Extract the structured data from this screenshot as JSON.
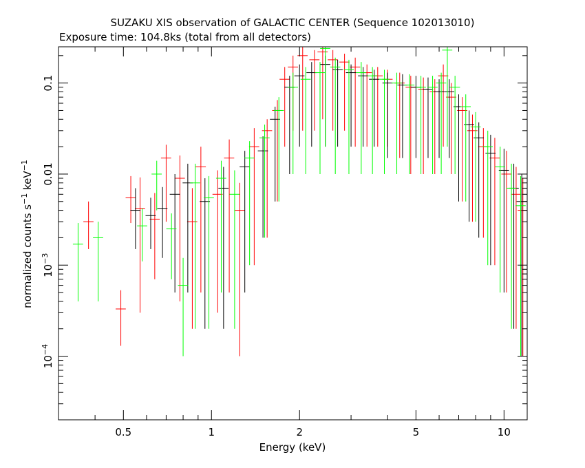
{
  "chart_data": {
    "type": "scatter",
    "title": "SUZAKU XIS observation of GALACTIC CENTER (Sequence 102013010)",
    "subtitle": "Exposure time: 104.8ks (total from all detectors)",
    "xlabel": "Energy (keV)",
    "ylabel_main": "normalized counts s",
    "ylabel_exp1": "−1",
    "ylabel_mid": " keV",
    "ylabel_exp2": "−1",
    "x_scale": "log",
    "y_scale": "log",
    "xlim": [
      0.3,
      12
    ],
    "ylim": [
      2e-05,
      0.25
    ],
    "x_ticks": [
      {
        "value": 0.5,
        "label": "0.5"
      },
      {
        "value": 1,
        "label": "1"
      },
      {
        "value": 2,
        "label": "2"
      },
      {
        "value": 5,
        "label": "5"
      },
      {
        "value": 10,
        "label": "10"
      }
    ],
    "y_ticks": [
      {
        "value": 0.1,
        "base": "0.1",
        "exp": ""
      },
      {
        "value": 0.01,
        "base": "0.01",
        "exp": ""
      },
      {
        "value": 0.001,
        "base": "10",
        "exp": "−3"
      },
      {
        "value": 0.0001,
        "base": "10",
        "exp": "−4"
      }
    ],
    "series": [
      {
        "color": "#ff0000",
        "points": [
          [
            0.38,
            0.003,
            0.002,
            0.0015
          ],
          [
            0.49,
            0.00033,
            0.0002,
            0.0002
          ],
          [
            0.53,
            0.0055,
            0.004,
            0.0026
          ],
          [
            0.57,
            0.0042,
            0.005,
            0.0039
          ],
          [
            0.64,
            0.0032,
            0.003,
            0.0025
          ],
          [
            0.7,
            0.015,
            0.006,
            0.012
          ],
          [
            0.78,
            0.009,
            0.007,
            0.0086
          ],
          [
            0.86,
            0.003,
            0.004,
            0.0028
          ],
          [
            0.92,
            0.012,
            0.008,
            0.0115
          ],
          [
            1.05,
            0.006,
            0.005,
            0.0057
          ],
          [
            1.15,
            0.015,
            0.009,
            0.0145
          ],
          [
            1.25,
            0.004,
            0.004,
            0.0039
          ],
          [
            1.4,
            0.02,
            0.012,
            0.019
          ],
          [
            1.55,
            0.03,
            0.01,
            0.028
          ],
          [
            1.68,
            0.05,
            0.015,
            0.045
          ],
          [
            1.78,
            0.11,
            0.04,
            0.09
          ],
          [
            1.9,
            0.15,
            0.05,
            0.12
          ],
          [
            2.05,
            0.2,
            0.05,
            0.17
          ],
          [
            2.25,
            0.18,
            0.05,
            0.15
          ],
          [
            2.4,
            0.22,
            0.03,
            0.18
          ],
          [
            2.6,
            0.18,
            0.05,
            0.15
          ],
          [
            2.85,
            0.17,
            0.04,
            0.14
          ],
          [
            3.1,
            0.15,
            0.04,
            0.13
          ],
          [
            3.4,
            0.13,
            0.03,
            0.11
          ],
          [
            3.7,
            0.12,
            0.03,
            0.1
          ],
          [
            4.0,
            0.11,
            0.03,
            0.09
          ],
          [
            4.4,
            0.1,
            0.03,
            0.085
          ],
          [
            4.8,
            0.09,
            0.03,
            0.08
          ],
          [
            5.3,
            0.085,
            0.03,
            0.075
          ],
          [
            5.8,
            0.08,
            0.03,
            0.07
          ],
          [
            6.2,
            0.12,
            0.04,
            0.1
          ],
          [
            6.6,
            0.07,
            0.03,
            0.06
          ],
          [
            7.2,
            0.05,
            0.02,
            0.045
          ],
          [
            7.8,
            0.03,
            0.015,
            0.027
          ],
          [
            8.5,
            0.02,
            0.012,
            0.018
          ],
          [
            9.3,
            0.015,
            0.01,
            0.014
          ],
          [
            10.2,
            0.01,
            0.008,
            0.0095
          ],
          [
            11.0,
            0.006,
            0.006,
            0.0058
          ],
          [
            11.6,
            0.004,
            0.005,
            0.0039
          ]
        ]
      },
      {
        "color": "#000000",
        "points": [
          [
            0.55,
            0.004,
            0.003,
            0.0025
          ],
          [
            0.62,
            0.0035,
            0.002,
            0.002
          ],
          [
            0.68,
            0.0042,
            0.003,
            0.003
          ],
          [
            0.75,
            0.006,
            0.004,
            0.0055
          ],
          [
            0.83,
            0.008,
            0.005,
            0.0075
          ],
          [
            0.95,
            0.005,
            0.004,
            0.0048
          ],
          [
            1.1,
            0.007,
            0.005,
            0.0068
          ],
          [
            1.3,
            0.012,
            0.006,
            0.0115
          ],
          [
            1.5,
            0.018,
            0.008,
            0.016
          ],
          [
            1.65,
            0.04,
            0.015,
            0.035
          ],
          [
            1.85,
            0.09,
            0.03,
            0.08
          ],
          [
            2.0,
            0.12,
            0.04,
            0.1
          ],
          [
            2.2,
            0.13,
            0.04,
            0.11
          ],
          [
            2.45,
            0.16,
            0.04,
            0.14
          ],
          [
            2.7,
            0.14,
            0.04,
            0.12
          ],
          [
            3.0,
            0.13,
            0.03,
            0.11
          ],
          [
            3.3,
            0.12,
            0.03,
            0.1
          ],
          [
            3.6,
            0.11,
            0.03,
            0.09
          ],
          [
            4.0,
            0.1,
            0.03,
            0.085
          ],
          [
            4.5,
            0.095,
            0.03,
            0.08
          ],
          [
            5.0,
            0.09,
            0.03,
            0.075
          ],
          [
            5.5,
            0.085,
            0.03,
            0.07
          ],
          [
            6.0,
            0.08,
            0.03,
            0.065
          ],
          [
            6.5,
            0.08,
            0.03,
            0.065
          ],
          [
            7.0,
            0.055,
            0.02,
            0.05
          ],
          [
            7.6,
            0.035,
            0.015,
            0.032
          ],
          [
            8.2,
            0.025,
            0.012,
            0.023
          ],
          [
            9.0,
            0.017,
            0.01,
            0.016
          ],
          [
            10.0,
            0.011,
            0.008,
            0.0105
          ],
          [
            10.8,
            0.007,
            0.006,
            0.0068
          ],
          [
            11.5,
            0.005,
            0.005,
            0.0049
          ]
        ]
      },
      {
        "color": "#00ff00",
        "points": [
          [
            0.35,
            0.0017,
            0.0012,
            0.0013
          ],
          [
            0.41,
            0.002,
            0.001,
            0.0016
          ],
          [
            0.58,
            0.0027,
            0.0015,
            0.0016
          ],
          [
            0.65,
            0.01,
            0.004,
            0.006
          ],
          [
            0.73,
            0.0025,
            0.0012,
            0.0018
          ],
          [
            0.8,
            0.0006,
            0.0006,
            0.0005
          ],
          [
            0.88,
            0.008,
            0.005,
            0.0078
          ],
          [
            0.98,
            0.0055,
            0.004,
            0.0053
          ],
          [
            1.08,
            0.009,
            0.005,
            0.0085
          ],
          [
            1.2,
            0.006,
            0.005,
            0.0058
          ],
          [
            1.35,
            0.015,
            0.008,
            0.014
          ],
          [
            1.52,
            0.025,
            0.01,
            0.023
          ],
          [
            1.7,
            0.05,
            0.02,
            0.045
          ],
          [
            1.9,
            0.09,
            0.04,
            0.08
          ],
          [
            2.1,
            0.11,
            0.04,
            0.1
          ],
          [
            2.35,
            0.13,
            0.04,
            0.12
          ],
          [
            2.45,
            0.24,
            0.04,
            0.22
          ],
          [
            2.65,
            0.15,
            0.04,
            0.14
          ],
          [
            2.95,
            0.14,
            0.04,
            0.13
          ],
          [
            3.25,
            0.13,
            0.04,
            0.12
          ],
          [
            3.55,
            0.12,
            0.03,
            0.11
          ],
          [
            3.9,
            0.11,
            0.03,
            0.1
          ],
          [
            4.3,
            0.1,
            0.03,
            0.09
          ],
          [
            4.75,
            0.095,
            0.03,
            0.085
          ],
          [
            5.2,
            0.09,
            0.03,
            0.08
          ],
          [
            5.7,
            0.09,
            0.03,
            0.08
          ],
          [
            6.1,
            0.1,
            0.03,
            0.09
          ],
          [
            6.4,
            0.23,
            0.04,
            0.21
          ],
          [
            6.8,
            0.09,
            0.03,
            0.08
          ],
          [
            7.4,
            0.055,
            0.02,
            0.05
          ],
          [
            8.0,
            0.033,
            0.015,
            0.03
          ],
          [
            8.8,
            0.02,
            0.01,
            0.019
          ],
          [
            9.7,
            0.012,
            0.008,
            0.0115
          ],
          [
            10.6,
            0.007,
            0.006,
            0.0068
          ],
          [
            11.4,
            0.0045,
            0.005,
            0.0044
          ]
        ]
      }
    ]
  }
}
